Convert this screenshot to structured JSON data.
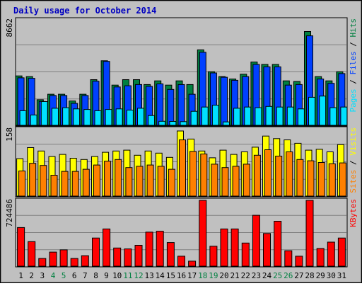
{
  "chart_data": {
    "type": "bar",
    "title": "Daily usage for October 2014",
    "categories": [
      "1",
      "2",
      "3",
      "4",
      "5",
      "6",
      "7",
      "8",
      "9",
      "10",
      "11",
      "12",
      "13",
      "14",
      "15",
      "16",
      "17",
      "18",
      "19",
      "20",
      "21",
      "22",
      "23",
      "24",
      "25",
      "26",
      "27",
      "28",
      "29",
      "30",
      "31"
    ],
    "weekend_days": [
      "4",
      "5",
      "11",
      "12",
      "18",
      "19",
      "25",
      "26"
    ],
    "panels": [
      {
        "name": "hits-files-pages",
        "max_label": "8662",
        "ylim": [
          0,
          8662
        ],
        "side_labels": [
          "Pages",
          "Files",
          "Hits"
        ],
        "series": [
          {
            "name": "Hits",
            "color": "#008040",
            "values": [
              4060,
              4000,
              2100,
              2550,
              2550,
              2000,
              2550,
              3750,
              5300,
              3300,
              3750,
              3750,
              3350,
              3650,
              3300,
              3650,
              3350,
              6200,
              4400,
              4000,
              3800,
              4200,
              5200,
              5000,
              5000,
              3650,
              3600,
              7700,
              4000,
              3650,
              4400
            ]
          },
          {
            "name": "Files",
            "color": "#0040ff",
            "values": [
              3900,
              3860,
              1960,
              2450,
              2450,
              1800,
              2450,
              3620,
              5250,
              3150,
              3250,
              3350,
              3200,
              3400,
              2950,
              3350,
              2550,
              6000,
              4300,
              3950,
              3700,
              4000,
              5000,
              4800,
              4800,
              3300,
              3350,
              7350,
              3800,
              3450,
              4250
            ]
          },
          {
            "name": "Pages",
            "color": "#00e0ff",
            "values": [
              1200,
              850,
              1950,
              1400,
              1450,
              1350,
              1300,
              1200,
              1300,
              1350,
              1250,
              1400,
              800,
              330,
              320,
              300,
              1150,
              1500,
              1650,
              280,
              1400,
              1500,
              1450,
              1550,
              1500,
              1500,
              1350,
              2300,
              2400,
              1450,
              1500
            ]
          }
        ]
      },
      {
        "name": "visits-sites",
        "max_label": "158",
        "ylim": [
          0,
          158
        ],
        "side_labels": [
          "Sites",
          "Visits"
        ],
        "series": [
          {
            "name": "Visits",
            "color": "#ffff00",
            "values": [
              88,
              114,
              106,
              93,
              98,
              89,
              86,
              93,
              103,
              106,
              108,
              96,
              106,
              101,
              91,
              153,
              134,
              106,
              90,
              108,
              98,
              104,
              115,
              141,
              135,
              132,
              124,
              108,
              110,
              104,
              121
            ]
          },
          {
            "name": "Sites",
            "color": "#ff8000",
            "values": [
              59,
              77,
              72,
              49,
              58,
              58,
              63,
              73,
              82,
              86,
              67,
              70,
              73,
              70,
              63,
              132,
              105,
              99,
              75,
              67,
              70,
              75,
              96,
              109,
              94,
              104,
              86,
              83,
              79,
              76,
              78
            ]
          }
        ]
      },
      {
        "name": "kbytes",
        "max_label": "724486",
        "ylim": [
          0,
          724486
        ],
        "side_labels": [
          "KBytes"
        ],
        "series": [
          {
            "name": "KBytes",
            "color": "#ff0000",
            "values": [
              425000,
              270000,
              85000,
              155000,
              180000,
              85000,
              115000,
              310000,
              410000,
              200000,
              190000,
              230000,
              375000,
              385000,
              260000,
              110000,
              55000,
              724486,
              220000,
              410000,
              410000,
              255000,
              560000,
              360000,
              495000,
              170000,
              110000,
              724486,
              195000,
              265000,
              310000
            ]
          }
        ]
      }
    ]
  }
}
